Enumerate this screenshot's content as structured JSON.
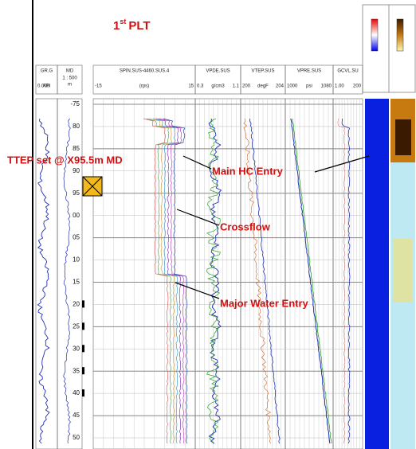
{
  "title": {
    "number": "1",
    "suffix": "st",
    "text": "PLT"
  },
  "tracks": [
    {
      "name": "GR.G",
      "scale": [
        "0.000",
        "API",
        ""
      ]
    },
    {
      "name": "MD",
      "scale": [
        "1 : 500",
        "m"
      ]
    },
    {
      "name": "SPIN.SUS-4460.SUS.4",
      "scale": [
        "-15",
        "(rps)",
        "15"
      ]
    },
    {
      "name": "VPDE.SUS",
      "scale": [
        "0.3",
        "g/cm3",
        "1.1"
      ]
    },
    {
      "name": "VTEP.SUS",
      "scale": [
        "200",
        "degF",
        "204"
      ]
    },
    {
      "name": "VPRE.SUS",
      "scale": [
        "1000",
        "psi",
        "1080"
      ]
    },
    {
      "name": "GCVL.SU",
      "scale": [
        "1.00",
        "",
        "200"
      ]
    }
  ],
  "depths": [
    "-75",
    "80",
    "85",
    "90",
    "95",
    "00",
    "05",
    "10",
    "15",
    "20",
    "25",
    "30",
    "35",
    "40",
    "45",
    "50"
  ],
  "annotations": [
    "TTEP set @ X95.5m MD",
    "Main HC Entry",
    "Crossflow",
    "Major Water Entry"
  ]
}
